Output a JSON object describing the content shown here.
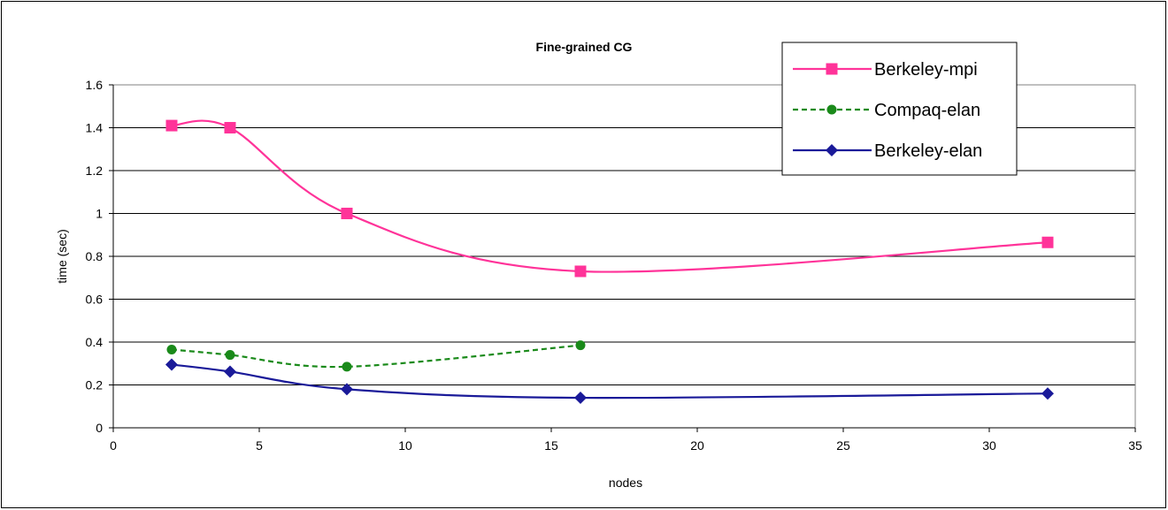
{
  "chart_data": {
    "type": "line",
    "title": "Fine-grained CG",
    "xlabel": "nodes",
    "ylabel": "time (sec)",
    "xlim": [
      0,
      35
    ],
    "ylim": [
      0,
      1.6
    ],
    "xticks": [
      0,
      5,
      10,
      15,
      20,
      25,
      30,
      35
    ],
    "yticks": [
      0,
      0.2,
      0.4,
      0.6,
      0.8,
      1,
      1.2,
      1.4,
      1.6
    ],
    "xtick_labels": [
      "0",
      "5",
      "10",
      "15",
      "20",
      "25",
      "30",
      "35"
    ],
    "ytick_labels": [
      "0",
      "0.2",
      "0.4",
      "0.6",
      "0.8",
      "1",
      "1.2",
      "1.4",
      "1.6"
    ],
    "grid": "horizontal",
    "legend_position": "top-right",
    "series": [
      {
        "name": "Berkeley-mpi",
        "color": "#ff3399",
        "marker": "square",
        "line_style": "solid",
        "smooth": true,
        "x": [
          2,
          4,
          8,
          16,
          32
        ],
        "y": [
          1.41,
          1.4,
          1.0,
          0.73,
          0.865
        ]
      },
      {
        "name": "Compaq-elan",
        "color": "#1a8a1a",
        "marker": "circle",
        "line_style": "dashed",
        "smooth": true,
        "x": [
          2,
          4,
          8,
          16
        ],
        "y": [
          0.365,
          0.34,
          0.285,
          0.385
        ]
      },
      {
        "name": "Berkeley-elan",
        "color": "#1a1a99",
        "marker": "diamond",
        "line_style": "solid",
        "smooth": true,
        "x": [
          2,
          4,
          8,
          16,
          32
        ],
        "y": [
          0.295,
          0.262,
          0.18,
          0.14,
          0.16
        ]
      }
    ]
  }
}
